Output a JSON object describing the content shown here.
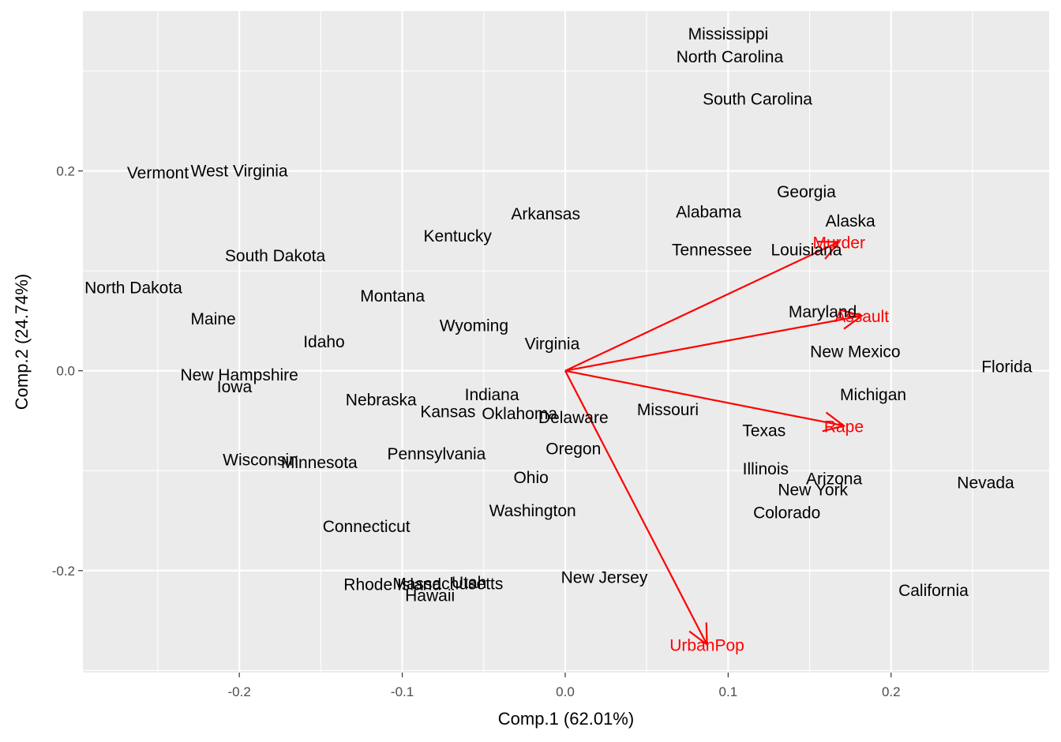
{
  "chart_data": {
    "type": "scatter",
    "subtype": "pca-biplot",
    "xlabel": "Comp.1 (62.01%)",
    "ylabel": "Comp.2 (24.74%)",
    "xlim": [
      -0.296,
      0.297
    ],
    "ylim": [
      -0.302,
      0.36
    ],
    "x_ticks": [
      -0.2,
      -0.1,
      0.0,
      0.1,
      0.2
    ],
    "x_tick_labels": [
      "-0.2",
      "-0.1",
      "0.0",
      "0.1",
      "0.2"
    ],
    "y_ticks": [
      -0.2,
      0.0,
      0.2
    ],
    "y_tick_labels": [
      "-0.2",
      "0.0",
      "0.2"
    ],
    "grid": true,
    "panel_background": "#ebebeb",
    "grid_color": "#ffffff",
    "point_label_color": "#000000",
    "loading_color": "#ff0000",
    "points": [
      {
        "label": "Mississippi",
        "x": 0.1,
        "y": 0.337
      },
      {
        "label": "North Carolina",
        "x": 0.101,
        "y": 0.314
      },
      {
        "label": "South Carolina",
        "x": 0.118,
        "y": 0.272
      },
      {
        "label": "Vermont",
        "x": -0.25,
        "y": 0.198
      },
      {
        "label": "West Virginia",
        "x": -0.2,
        "y": 0.2
      },
      {
        "label": "Georgia",
        "x": 0.148,
        "y": 0.179
      },
      {
        "label": "Arkansas",
        "x": -0.012,
        "y": 0.157
      },
      {
        "label": "Alabama",
        "x": 0.088,
        "y": 0.159
      },
      {
        "label": "Alaska",
        "x": 0.175,
        "y": 0.15
      },
      {
        "label": "Kentucky",
        "x": -0.066,
        "y": 0.135
      },
      {
        "label": "South Dakota",
        "x": -0.178,
        "y": 0.115
      },
      {
        "label": "Tennessee",
        "x": 0.09,
        "y": 0.121
      },
      {
        "label": "Louisiana",
        "x": 0.148,
        "y": 0.121
      },
      {
        "label": "North Dakota",
        "x": -0.265,
        "y": 0.083
      },
      {
        "label": "Montana",
        "x": -0.106,
        "y": 0.075
      },
      {
        "label": "Maine",
        "x": -0.216,
        "y": 0.052
      },
      {
        "label": "Maryland",
        "x": 0.158,
        "y": 0.059
      },
      {
        "label": "Wyoming",
        "x": -0.056,
        "y": 0.045
      },
      {
        "label": "Idaho",
        "x": -0.148,
        "y": 0.029
      },
      {
        "label": "Virginia",
        "x": -0.008,
        "y": 0.027
      },
      {
        "label": "New Mexico",
        "x": 0.178,
        "y": 0.019
      },
      {
        "label": "Florida",
        "x": 0.271,
        "y": 0.004
      },
      {
        "label": "New Hampshire",
        "x": -0.2,
        "y": -0.004
      },
      {
        "label": "Iowa",
        "x": -0.203,
        "y": -0.016
      },
      {
        "label": "Michigan",
        "x": 0.189,
        "y": -0.024
      },
      {
        "label": "Nebraska",
        "x": -0.113,
        "y": -0.029
      },
      {
        "label": "Indiana",
        "x": -0.045,
        "y": -0.024
      },
      {
        "label": "Kansas",
        "x": -0.072,
        "y": -0.041
      },
      {
        "label": "Oklahoma",
        "x": -0.028,
        "y": -0.043
      },
      {
        "label": "Delaware",
        "x": 0.005,
        "y": -0.047
      },
      {
        "label": "Missouri",
        "x": 0.063,
        "y": -0.039
      },
      {
        "label": "Texas",
        "x": 0.122,
        "y": -0.06
      },
      {
        "label": "Rape",
        "x": 0.171,
        "y": -0.055,
        "loading": true
      },
      {
        "label": "Pennsylvania",
        "x": -0.079,
        "y": -0.083
      },
      {
        "label": "Oregon",
        "x": 0.005,
        "y": -0.078
      },
      {
        "label": "Wisconsin",
        "x": -0.187,
        "y": -0.089
      },
      {
        "label": "Minnesota",
        "x": -0.151,
        "y": -0.092
      },
      {
        "label": "Illinois",
        "x": 0.123,
        "y": -0.098
      },
      {
        "label": "Arizona",
        "x": 0.165,
        "y": -0.108
      },
      {
        "label": "Nevada",
        "x": 0.258,
        "y": -0.112
      },
      {
        "label": "Ohio",
        "x": -0.021,
        "y": -0.107
      },
      {
        "label": "New York",
        "x": 0.152,
        "y": -0.119
      },
      {
        "label": "Washington",
        "x": -0.02,
        "y": -0.14
      },
      {
        "label": "Colorado",
        "x": 0.136,
        "y": -0.142
      },
      {
        "label": "Connecticut",
        "x": -0.122,
        "y": -0.156
      },
      {
        "label": "New Jersey",
        "x": 0.024,
        "y": -0.207
      },
      {
        "label": "Utah",
        "x": -0.059,
        "y": -0.212
      },
      {
        "label": "Massachusetts",
        "x": -0.072,
        "y": -0.213
      },
      {
        "label": "Rhode Island",
        "x": -0.106,
        "y": -0.214
      },
      {
        "label": "Hawaii",
        "x": -0.083,
        "y": -0.225
      },
      {
        "label": "California",
        "x": 0.226,
        "y": -0.22
      }
    ],
    "loadings": [
      {
        "label": "Murder",
        "x": 0.168,
        "y": 0.129,
        "text_x": 0.168,
        "text_y": 0.129
      },
      {
        "label": "Assault",
        "x": 0.182,
        "y": 0.055,
        "text_x": 0.182,
        "text_y": 0.055
      },
      {
        "label": "Rape",
        "x": 0.171,
        "y": -0.055,
        "text_x": 0.171,
        "text_y": -0.055
      },
      {
        "label": "UrbanPop",
        "x": 0.087,
        "y": -0.274,
        "text_x": 0.087,
        "text_y": -0.274
      }
    ]
  }
}
